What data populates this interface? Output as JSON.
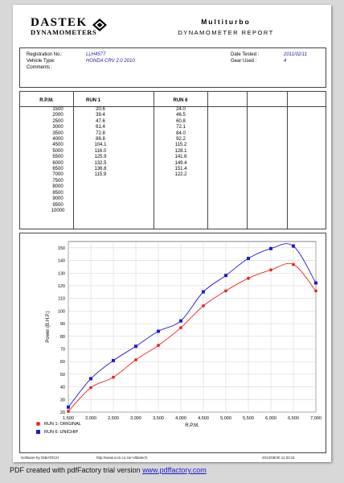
{
  "brand": {
    "name_top": "DASTEK",
    "name_bottom": "DYNAMOMETERS"
  },
  "report": {
    "title": "Multiturbo",
    "subtitle": "DYNAMOMETER REPORT"
  },
  "info": {
    "registration_label": "Registration No.:",
    "registration_value": "LLH4577",
    "vehicle_label": "Vehicle Type:",
    "vehicle_value": "HONDA CRV 2.0 2010",
    "comments_label": "Comments :",
    "date_label": "Date Tested :",
    "date_value": "2011/02/11",
    "gear_label": "Gear Used :",
    "gear_value": "4"
  },
  "table": {
    "headers": [
      "R.P.M.",
      "RUN 1",
      "RUN 6"
    ],
    "rpm": [
      "1500",
      "2000",
      "2500",
      "3000",
      "3500",
      "4000",
      "4500",
      "5000",
      "5500",
      "6000",
      "6500",
      "7000",
      "7500",
      "8000",
      "8500",
      "9000",
      "9500",
      "10000"
    ],
    "run1": [
      "20.6",
      "39.4",
      "47.6",
      "61.4",
      "72.8",
      "86.8",
      "104.1",
      "116.0",
      "125.9",
      "132.5",
      "136.8",
      "115.9"
    ],
    "run6": [
      "24.0",
      "46.5",
      "60.8",
      "72.1",
      "84.0",
      "92.2",
      "115.2",
      "128.1",
      "141.6",
      "149.4",
      "151.4",
      "122.2"
    ]
  },
  "chart_data": {
    "type": "line",
    "x": [
      1500,
      2000,
      2500,
      3000,
      3500,
      4000,
      4500,
      5000,
      5500,
      6000,
      6500,
      7000
    ],
    "xticks": [
      "1,500",
      "2,000",
      "2,500",
      "3,000",
      "3,500",
      "4,000",
      "4,500",
      "5,000",
      "5,500",
      "6,000",
      "6,500",
      "7,000"
    ],
    "xlim": [
      1500,
      7000
    ],
    "yticks": [
      "20",
      "30",
      "40",
      "50",
      "60",
      "70",
      "80",
      "90",
      "100",
      "110",
      "120",
      "130",
      "140",
      "150"
    ],
    "ylim": [
      20,
      155
    ],
    "xlabel": "R.P.M.",
    "ylabel": "Power (B.H.P.)",
    "grid": true,
    "legend_position": "bottom-left",
    "series": [
      {
        "name": "RUN 1: ORIGINAL",
        "color": "#e8251d",
        "marker": "circle",
        "values": [
          20.6,
          39.4,
          47.6,
          61.4,
          72.8,
          86.8,
          104.1,
          116.0,
          125.9,
          132.5,
          136.8,
          115.9
        ]
      },
      {
        "name": "RUN 6: UNICHIP",
        "color": "#1c1cc8",
        "marker": "square",
        "values": [
          24.0,
          46.5,
          60.8,
          72.1,
          84.0,
          92.2,
          115.2,
          128.1,
          141.6,
          149.4,
          151.4,
          122.2
        ]
      }
    ]
  },
  "footer": {
    "software": "Software by DIBATECH",
    "url": "http://www.icon.co.za/~dibatech",
    "timestamp": "2012/08/30 11:03:31"
  },
  "pdf_note": {
    "prefix": "PDF created with pdfFactory trial version ",
    "link": "www.pdffactory.com"
  }
}
